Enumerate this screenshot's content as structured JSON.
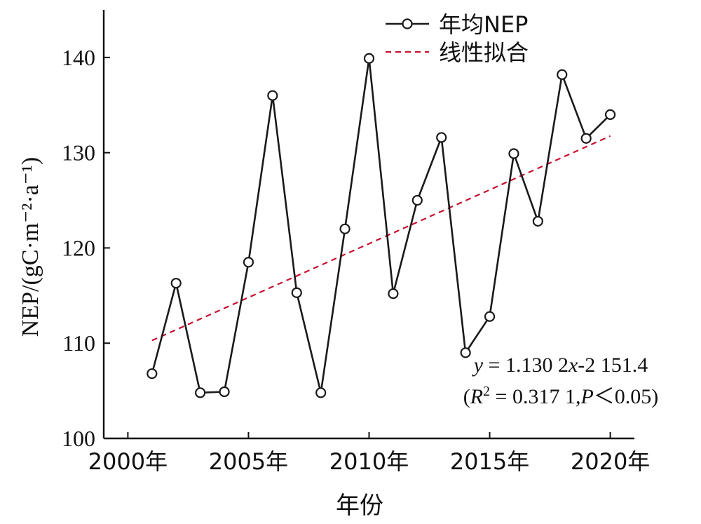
{
  "chart_data": {
    "type": "line",
    "x": [
      2001,
      2002,
      2003,
      2004,
      2005,
      2006,
      2007,
      2008,
      2009,
      2010,
      2011,
      2012,
      2013,
      2014,
      2015,
      2016,
      2017,
      2018,
      2019,
      2020
    ],
    "series": [
      {
        "name": "年均NEP",
        "values": [
          106.8,
          116.3,
          104.8,
          104.9,
          118.5,
          136.0,
          115.3,
          104.8,
          122.0,
          139.9,
          115.2,
          125.0,
          131.6,
          109.0,
          112.8,
          129.9,
          122.8,
          138.2,
          131.5,
          134.0
        ],
        "color": "#1a1a1a",
        "marker": "open-circle"
      },
      {
        "name": "线性拟合",
        "style": "dashed",
        "color": "#c8102e",
        "x": [
          2001,
          2020
        ],
        "values": [
          110.28,
          131.75
        ]
      }
    ],
    "xlim": [
      1999.0,
      2021.0
    ],
    "ylim": [
      100,
      145
    ],
    "xticks": [
      2000,
      2005,
      2010,
      2015,
      2020
    ],
    "xtick_labels": [
      "2000年",
      "2005年",
      "2010年",
      "2015年",
      "2020年"
    ],
    "yticks": [
      100,
      110,
      120,
      130,
      140
    ],
    "ytick_labels": [
      "100",
      "110",
      "120",
      "130",
      "140"
    ],
    "xlabel": "年份",
    "ylabel": "NEP/(gC·m⁻²·a⁻¹)",
    "legend_position": "top-right",
    "grid": false,
    "annotation": {
      "equation_parts": [
        "y",
        " = 1.130 2",
        "x",
        "-2 151.4"
      ],
      "stats_parts": [
        "(",
        "R",
        "2",
        " = 0.317 1,",
        "P",
        "＜0.05)"
      ]
    }
  }
}
